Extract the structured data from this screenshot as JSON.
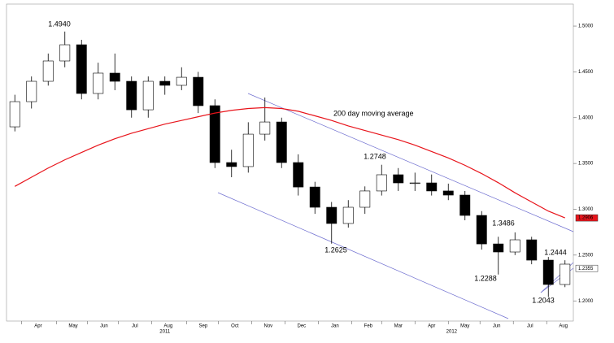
{
  "chart_data": {
    "type": "candlestick",
    "categories": [
      null,
      null,
      null,
      null,
      null,
      null,
      null,
      null,
      null,
      null,
      null,
      null,
      null,
      null,
      null,
      null,
      null,
      null,
      null,
      null,
      null,
      null,
      null,
      null,
      null,
      null,
      null,
      null,
      null,
      null,
      null,
      null,
      null,
      null
    ],
    "open": [
      1.39,
      1.4175,
      1.4397,
      1.4619,
      1.4796,
      1.4264,
      1.4486,
      1.4397,
      1.4086,
      1.4397,
      1.4353,
      1.4441,
      1.4131,
      1.351,
      1.3466,
      1.382,
      1.3953,
      1.351,
      1.3243,
      1.3022,
      1.2845,
      1.3022,
      1.32,
      1.3377,
      1.3288,
      1.3288,
      1.32,
      1.3155,
      1.2933,
      1.2622,
      1.2534,
      1.2667,
      1.2445,
      1.2179
    ],
    "high": [
      1.425,
      1.445,
      1.47,
      1.494,
      1.485,
      1.46,
      1.47,
      1.445,
      1.445,
      1.445,
      1.455,
      1.45,
      1.42,
      1.365,
      1.395,
      1.422,
      1.4,
      1.36,
      1.33,
      1.308,
      1.31,
      1.325,
      1.3486,
      1.345,
      1.34,
      1.338,
      1.328,
      1.32,
      1.298,
      1.27,
      1.2748,
      1.27,
      1.248,
      1.2444
    ],
    "low": [
      1.385,
      1.41,
      1.435,
      1.455,
      1.42,
      1.42,
      1.43,
      1.4,
      1.4,
      1.425,
      1.43,
      1.405,
      1.345,
      1.335,
      1.34,
      1.375,
      1.345,
      1.315,
      1.295,
      1.2625,
      1.28,
      1.295,
      1.315,
      1.32,
      1.32,
      1.315,
      1.31,
      1.288,
      1.256,
      1.2288,
      1.25,
      1.24,
      1.2043,
      1.215
    ],
    "close": [
      1.4175,
      1.4397,
      1.4619,
      1.4796,
      1.4264,
      1.4486,
      1.4397,
      1.4086,
      1.4397,
      1.4353,
      1.4441,
      1.4131,
      1.351,
      1.3466,
      1.382,
      1.3953,
      1.351,
      1.3243,
      1.3022,
      1.2845,
      1.3022,
      1.32,
      1.3377,
      1.3288,
      1.3288,
      1.32,
      1.3155,
      1.2933,
      1.2622,
      1.2534,
      1.2667,
      1.2445,
      1.2179,
      1.2401
    ],
    "color": "#000000",
    "moving_average": {
      "name": "200 day moving average",
      "color": "#e8141b",
      "values": [
        1.325,
        1.335,
        1.345,
        1.354,
        1.362,
        1.37,
        1.377,
        1.383,
        1.388,
        1.393,
        1.397,
        1.401,
        1.405,
        1.408,
        1.41,
        1.411,
        1.41,
        1.407,
        1.402,
        1.397,
        1.391,
        1.386,
        1.381,
        1.376,
        1.37,
        1.363,
        1.356,
        1.348,
        1.339,
        1.329,
        1.318,
        1.308,
        1.298,
        1.2906
      ]
    },
    "ylim": [
      1.178,
      1.524
    ],
    "yticks": [
      {
        "value": 1.2,
        "label": "1.2000"
      },
      {
        "value": 1.25,
        "label": "1.2500"
      },
      {
        "value": 1.3,
        "label": "1.3000"
      },
      {
        "value": 1.35,
        "label": "1.3500"
      },
      {
        "value": 1.4,
        "label": "1.4000"
      },
      {
        "value": 1.45,
        "label": "1.4500"
      },
      {
        "value": 1.5,
        "label": "1.5000"
      }
    ],
    "xticks": [
      {
        "value": 1.4,
        "label": "Apr"
      },
      {
        "value": 3.5,
        "label": "May"
      },
      {
        "value": 5.35,
        "label": "Jun"
      },
      {
        "value": 7.2,
        "label": "Jul"
      },
      {
        "value": 9.2,
        "label": "Aug"
      },
      {
        "value": 11.3,
        "label": "Sep"
      },
      {
        "value": 13.2,
        "label": "Oct"
      },
      {
        "value": 15.2,
        "label": "Nov"
      },
      {
        "value": 17.2,
        "label": "Dec"
      },
      {
        "value": 19.2,
        "label": "Jan"
      },
      {
        "value": 21.2,
        "label": "Feb"
      },
      {
        "value": 23.0,
        "label": "Mar"
      },
      {
        "value": 25.0,
        "label": "Apr"
      },
      {
        "value": 27.0,
        "label": "May"
      },
      {
        "value": 28.9,
        "label": "Jun"
      },
      {
        "value": 30.9,
        "label": "Jul"
      },
      {
        "value": 32.9,
        "label": "Aug"
      }
    ],
    "year_labels": [
      {
        "value": 9.0,
        "label": "2011"
      },
      {
        "value": 26.2,
        "label": "2012"
      }
    ],
    "annotations": [
      "1.4940",
      "1.2748",
      "1.2625",
      "1.3486",
      "1.2288",
      "1.2444",
      "1.2043"
    ],
    "price_labels": [
      {
        "value": 1.2906,
        "label": "1.2906",
        "color": "#e8141b"
      },
      {
        "value": 1.2355,
        "label": "1.2355",
        "color": "#ffffff"
      }
    ]
  }
}
